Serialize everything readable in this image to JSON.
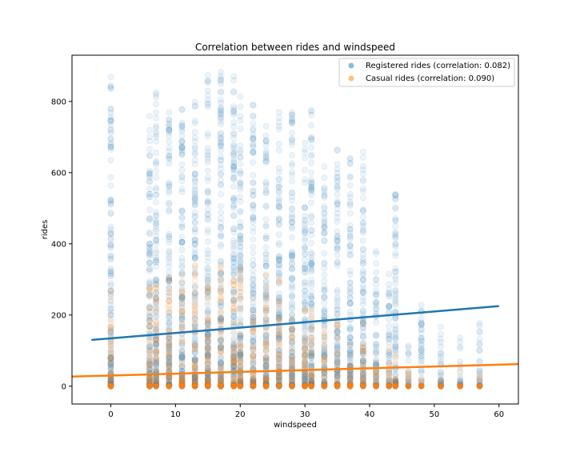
{
  "chart_data": {
    "type": "scatter",
    "title": "Correlation between rides and windspeed",
    "xlabel": "windspeed",
    "ylabel": "rides",
    "xlim": [
      -6,
      63
    ],
    "ylim": [
      -50,
      930
    ],
    "x_ticks": [
      0,
      10,
      20,
      30,
      40,
      50,
      60
    ],
    "y_ticks": [
      0,
      200,
      400,
      600,
      800
    ],
    "grid": false,
    "legend_position": "top-right",
    "windspeed_levels": [
      0,
      6,
      7,
      9,
      11,
      13,
      15,
      17,
      19,
      20,
      22,
      24,
      26,
      28,
      30,
      31,
      33,
      35,
      37,
      39,
      41,
      43,
      44,
      46,
      48,
      51,
      54,
      57
    ],
    "series": [
      {
        "name": "Registered rides (correlation: 0.082)",
        "color": "#1f77b4",
        "point_alpha": 0.08,
        "max_rides_by_level": [
          875,
          770,
          840,
          790,
          805,
          840,
          885,
          885,
          875,
          815,
          790,
          740,
          775,
          795,
          690,
          780,
          630,
          670,
          650,
          660,
          400,
          330,
          545,
          120,
          240,
          200,
          150,
          180
        ],
        "trend_line": {
          "x": [
            -3,
            60
          ],
          "y": [
            130,
            225
          ]
        }
      },
      {
        "name": "Casual rides (correlation: 0.090)",
        "color": "#ff7f0e",
        "point_alpha": 0.08,
        "max_rides_by_level": [
          270,
          290,
          300,
          320,
          330,
          340,
          340,
          340,
          340,
          340,
          260,
          320,
          300,
          200,
          220,
          220,
          160,
          200,
          150,
          180,
          100,
          110,
          90,
          60,
          30,
          30,
          40,
          45
        ],
        "trend_line": {
          "x": [
            -6,
            63
          ],
          "y": [
            27,
            62
          ]
        }
      }
    ]
  }
}
